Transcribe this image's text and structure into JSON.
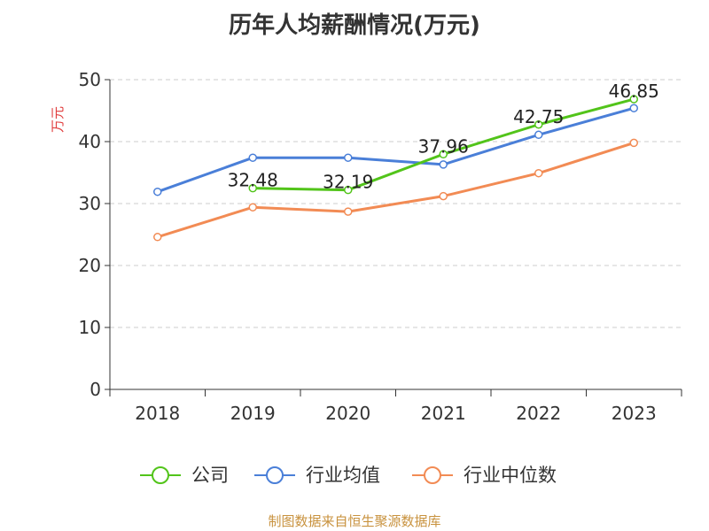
{
  "chart_data": {
    "type": "line",
    "title": "历年人均薪酬情况(万元)",
    "ylabel": "万元",
    "xlabel": "",
    "categories": [
      "2018",
      "2019",
      "2020",
      "2021",
      "2022",
      "2023"
    ],
    "ylim": [
      0,
      50
    ],
    "yticks": [
      0,
      10,
      20,
      30,
      40,
      50
    ],
    "grid": true,
    "legend_position": "bottom",
    "series": [
      {
        "name": "公司",
        "color": "#52c41a",
        "values": [
          null,
          32.48,
          32.19,
          37.96,
          42.75,
          46.85
        ],
        "labels": [
          "",
          "32.48",
          "32.19",
          "37.96",
          "42.75",
          "46.85"
        ]
      },
      {
        "name": "行业均值",
        "color": "#4a7fd8",
        "values": [
          31.9,
          37.4,
          37.4,
          36.3,
          41.1,
          45.4
        ]
      },
      {
        "name": "行业中位数",
        "color": "#f28b54",
        "values": [
          24.6,
          29.4,
          28.7,
          31.2,
          34.9,
          39.8
        ]
      }
    ]
  },
  "source": "制图数据来自恒生聚源数据库"
}
